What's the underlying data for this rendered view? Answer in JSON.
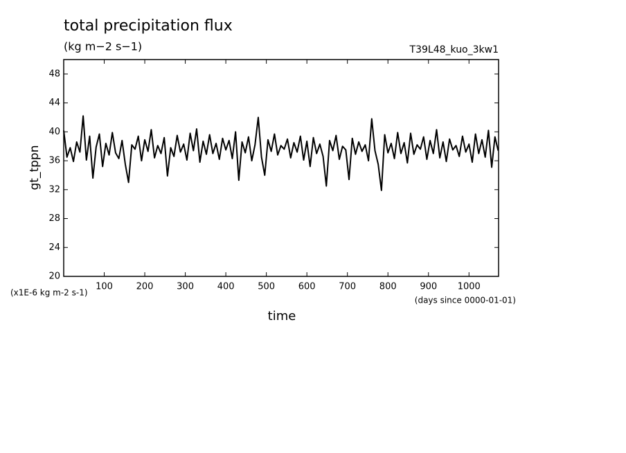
{
  "chart_data": {
    "type": "line",
    "title": "total precipitation flux",
    "subtitle": "(kg m−2 s−1)",
    "annotation": "T39L48_kuo_3kw1",
    "ylabel": "gt_tppn",
    "yunit": "(x1E-6 kg m-2 s-1)",
    "xlabel": "time",
    "xunit": "(days since 0000-01-01)",
    "x": [
      0,
      8,
      16,
      24,
      32,
      40,
      48,
      56,
      64,
      72,
      80,
      88,
      96,
      104,
      112,
      120,
      128,
      136,
      144,
      152,
      160,
      168,
      176,
      184,
      192,
      200,
      208,
      216,
      224,
      232,
      240,
      248,
      256,
      264,
      272,
      280,
      288,
      296,
      304,
      312,
      320,
      328,
      336,
      344,
      352,
      360,
      368,
      376,
      384,
      392,
      400,
      408,
      416,
      424,
      432,
      440,
      448,
      456,
      464,
      472,
      480,
      488,
      496,
      504,
      512,
      520,
      528,
      536,
      544,
      552,
      560,
      568,
      576,
      584,
      592,
      600,
      608,
      616,
      624,
      632,
      640,
      648,
      656,
      664,
      672,
      680,
      688,
      696,
      704,
      712,
      720,
      728,
      736,
      744,
      752,
      760,
      768,
      776,
      784,
      792,
      800,
      808,
      816,
      824,
      832,
      840,
      848,
      856,
      864,
      872,
      880,
      888,
      896,
      904,
      912,
      920,
      928,
      936,
      944,
      952,
      960,
      968,
      976,
      984,
      992,
      1000,
      1008,
      1016,
      1024,
      1032,
      1040,
      1048,
      1056,
      1064,
      1072
    ],
    "series": [
      {
        "name": "gt_tppn",
        "color": "#000000",
        "values": [
          40.2,
          36.5,
          37.8,
          35.9,
          38.6,
          37.2,
          42.2,
          36.1,
          39.4,
          33.6,
          37.9,
          39.7,
          35.2,
          38.4,
          36.8,
          39.9,
          37.1,
          36.3,
          38.8,
          35.5,
          33.0,
          38.2,
          37.6,
          39.4,
          36.0,
          38.9,
          37.3,
          40.3,
          36.4,
          38.1,
          37.0,
          39.2,
          33.9,
          37.8,
          36.6,
          39.5,
          37.2,
          38.3,
          36.1,
          39.8,
          37.4,
          40.4,
          35.8,
          38.7,
          36.9,
          39.6,
          37.0,
          38.4,
          36.2,
          39.1,
          37.5,
          38.8,
          36.3,
          40.0,
          33.3,
          38.6,
          37.1,
          39.3,
          36.0,
          38.2,
          42.0,
          36.5,
          34.0,
          38.9,
          37.3,
          39.7,
          36.8,
          38.1,
          37.6,
          39.0,
          36.4,
          38.5,
          37.2,
          39.4,
          36.1,
          38.7,
          35.2,
          39.2,
          37.0,
          38.3,
          36.6,
          32.5,
          38.8,
          37.4,
          39.5,
          36.2,
          38.0,
          37.5,
          33.4,
          39.1,
          36.9,
          38.6,
          37.3,
          38.2,
          36.0,
          41.8,
          37.4,
          35.5,
          31.9,
          39.6,
          37.1,
          38.4,
          36.3,
          39.9,
          37.0,
          38.5,
          35.7,
          39.8,
          36.9,
          38.2,
          37.6,
          39.3,
          36.2,
          38.8,
          37.0,
          40.3,
          36.4,
          38.6,
          35.9,
          39.0,
          37.5,
          38.1,
          36.6,
          39.4,
          37.2,
          38.3,
          35.8,
          39.7,
          37.0,
          38.9,
          36.5,
          40.2,
          35.1,
          39.3,
          37.4
        ]
      }
    ],
    "xlim": [
      0,
      1073
    ],
    "xticks": [
      100,
      200,
      300,
      400,
      500,
      600,
      700,
      800,
      900,
      1000
    ],
    "ylim": [
      20,
      50
    ],
    "yticks": [
      20,
      24,
      28,
      32,
      36,
      40,
      44,
      48
    ]
  }
}
